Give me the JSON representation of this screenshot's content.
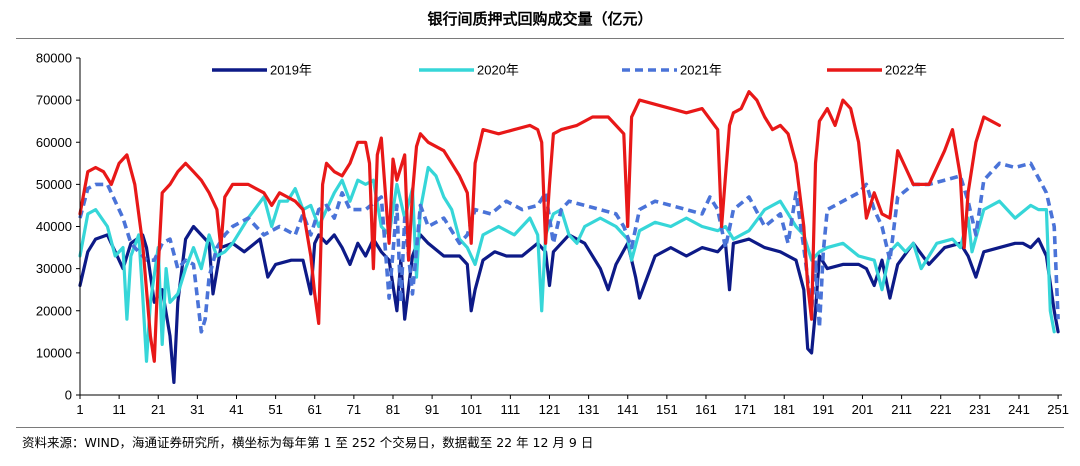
{
  "title": "银行间质押式回购成交量（亿元）",
  "source": "资料来源：WIND，海通证券研究所，横坐标为每年第 1 至 252 个交易日，数据截至 22 年 12 月 9 日",
  "chart_data": {
    "type": "line",
    "title": "银行间质押式回购成交量（亿元）",
    "xlabel": "",
    "ylabel": "",
    "xlim": [
      1,
      252
    ],
    "ylim": [
      0,
      80000
    ],
    "xticks": [
      1,
      11,
      21,
      31,
      41,
      51,
      61,
      71,
      81,
      91,
      101,
      111,
      121,
      131,
      141,
      151,
      161,
      171,
      181,
      191,
      201,
      211,
      221,
      231,
      241,
      251
    ],
    "yticks": [
      0,
      10000,
      20000,
      30000,
      40000,
      50000,
      60000,
      70000,
      80000
    ],
    "legend_position": "top",
    "series": [
      {
        "name": "2019年",
        "color": "#0d1a87",
        "dash": "solid",
        "x": [
          1,
          3,
          5,
          8,
          12,
          14,
          17,
          18,
          20,
          22,
          24,
          25,
          26,
          28,
          30,
          32,
          34,
          35,
          37,
          40,
          43,
          47,
          49,
          51,
          55,
          58,
          60,
          61,
          62,
          64,
          66,
          68,
          70,
          72,
          74,
          76,
          78,
          80,
          82,
          83,
          84,
          86,
          88,
          90,
          94,
          98,
          100,
          101,
          102,
          104,
          107,
          110,
          114,
          118,
          120,
          121,
          122,
          126,
          130,
          134,
          136,
          138,
          141,
          143,
          144,
          148,
          152,
          156,
          160,
          164,
          166,
          167,
          168,
          172,
          176,
          180,
          184,
          186,
          187,
          188,
          189,
          190,
          192,
          196,
          200,
          202,
          204,
          206,
          208,
          210,
          214,
          218,
          222,
          226,
          228,
          230,
          232,
          236,
          240,
          242,
          244,
          246,
          248,
          250,
          251
        ],
        "y": [
          26000,
          34000,
          37000,
          38000,
          30000,
          36000,
          38000,
          35000,
          22000,
          25000,
          14000,
          3000,
          22000,
          37000,
          40000,
          38000,
          36000,
          24000,
          35000,
          36000,
          34000,
          37000,
          28000,
          31000,
          32000,
          32000,
          24000,
          36000,
          38000,
          36000,
          38000,
          35000,
          31000,
          36000,
          33000,
          37000,
          34000,
          32000,
          20000,
          32000,
          18000,
          33000,
          38000,
          36000,
          33000,
          33000,
          31000,
          20000,
          25000,
          32000,
          34000,
          33000,
          33000,
          36000,
          34000,
          26000,
          34000,
          38000,
          36000,
          30000,
          25000,
          31000,
          36000,
          28000,
          23000,
          33000,
          35000,
          33000,
          35000,
          34000,
          36000,
          25000,
          36000,
          37000,
          35000,
          34000,
          32000,
          25000,
          11000,
          10000,
          20000,
          33000,
          30000,
          31000,
          31000,
          30000,
          26000,
          32000,
          23000,
          31000,
          36000,
          31000,
          35000,
          36000,
          33000,
          28000,
          34000,
          35000,
          36000,
          36000,
          35000,
          37000,
          33000,
          20000,
          15000
        ]
      },
      {
        "name": "2020年",
        "color": "#36d6d8",
        "dash": "solid",
        "x": [
          1,
          3,
          5,
          8,
          10,
          12,
          13,
          14,
          16,
          17,
          18,
          19,
          21,
          22,
          23,
          24,
          26,
          28,
          30,
          32,
          34,
          36,
          38,
          40,
          44,
          48,
          50,
          52,
          54,
          56,
          58,
          60,
          62,
          64,
          66,
          68,
          70,
          72,
          74,
          76,
          78,
          80,
          82,
          84,
          86,
          87,
          88,
          90,
          92,
          94,
          96,
          98,
          100,
          102,
          104,
          108,
          112,
          116,
          118,
          119,
          120,
          122,
          124,
          126,
          128,
          130,
          134,
          138,
          141,
          142,
          144,
          148,
          152,
          156,
          160,
          164,
          166,
          168,
          172,
          176,
          180,
          184,
          186,
          188,
          190,
          192,
          196,
          200,
          204,
          206,
          208,
          210,
          212,
          214,
          216,
          220,
          224,
          226,
          228,
          229,
          232,
          236,
          240,
          244,
          246,
          248,
          249,
          250
        ],
        "y": [
          33000,
          43000,
          44000,
          40000,
          33000,
          35000,
          18000,
          33000,
          38000,
          24000,
          8000,
          22000,
          35000,
          12000,
          30000,
          22000,
          24000,
          30000,
          35000,
          30000,
          38000,
          33000,
          34000,
          36000,
          42000,
          47000,
          40000,
          46000,
          46000,
          49000,
          44000,
          45000,
          40000,
          44000,
          48000,
          51000,
          46000,
          51000,
          50000,
          51000,
          40000,
          38000,
          50000,
          42000,
          49000,
          28000,
          44000,
          54000,
          52000,
          47000,
          44000,
          37000,
          35000,
          31000,
          38000,
          40000,
          38000,
          42000,
          38000,
          20000,
          38000,
          43000,
          44000,
          38000,
          36000,
          40000,
          42000,
          40000,
          37000,
          32000,
          39000,
          41000,
          40000,
          42000,
          40000,
          39000,
          40000,
          37000,
          39000,
          44000,
          46000,
          40000,
          38000,
          32000,
          34000,
          35000,
          36000,
          33000,
          32000,
          25000,
          34000,
          36000,
          34000,
          36000,
          30000,
          36000,
          37000,
          35000,
          42000,
          34000,
          44000,
          46000,
          42000,
          45000,
          44000,
          44000,
          20000,
          15000
        ]
      },
      {
        "name": "2021年",
        "color": "#4a73d8",
        "dash": "dashed",
        "x": [
          1,
          3,
          5,
          8,
          10,
          12,
          14,
          16,
          18,
          20,
          22,
          24,
          26,
          28,
          30,
          32,
          33,
          34,
          36,
          38,
          40,
          44,
          48,
          52,
          56,
          58,
          60,
          62,
          64,
          66,
          68,
          70,
          74,
          78,
          80,
          82,
          83,
          84,
          86,
          88,
          90,
          94,
          98,
          100,
          102,
          106,
          110,
          114,
          118,
          120,
          122,
          124,
          126,
          130,
          134,
          138,
          140,
          142,
          144,
          148,
          152,
          156,
          160,
          162,
          164,
          166,
          168,
          172,
          176,
          180,
          182,
          184,
          186,
          188,
          189,
          190,
          191,
          192,
          196,
          200,
          202,
          204,
          206,
          208,
          210,
          214,
          218,
          222,
          226,
          228,
          230,
          232,
          236,
          240,
          244,
          248,
          250,
          251
        ],
        "y": [
          42000,
          49000,
          50000,
          50000,
          46000,
          42000,
          36000,
          34000,
          32000,
          32000,
          36000,
          37000,
          30000,
          32000,
          31000,
          15000,
          18000,
          28000,
          35000,
          38000,
          40000,
          42000,
          38000,
          40000,
          38000,
          43000,
          38000,
          44000,
          45000,
          42000,
          48000,
          44000,
          44000,
          47000,
          23000,
          45000,
          22000,
          42000,
          24000,
          45000,
          40000,
          42000,
          36000,
          38000,
          44000,
          43000,
          46000,
          44000,
          45000,
          48000,
          36000,
          44000,
          46000,
          45000,
          44000,
          43000,
          40000,
          35000,
          44000,
          46000,
          45000,
          44000,
          43000,
          47000,
          44000,
          35000,
          44000,
          47000,
          40000,
          43000,
          36000,
          48000,
          35000,
          20000,
          32000,
          16000,
          34000,
          44000,
          46000,
          48000,
          50000,
          44000,
          40000,
          32000,
          47000,
          50000,
          50000,
          51000,
          52000,
          46000,
          38000,
          51000,
          55000,
          54000,
          55000,
          48000,
          40000,
          18000
        ]
      },
      {
        "name": "2022年",
        "color": "#e81818",
        "dash": "solid",
        "x": [
          1,
          3,
          5,
          7,
          9,
          11,
          13,
          15,
          17,
          18,
          19,
          20,
          21,
          22,
          24,
          26,
          28,
          30,
          32,
          34,
          36,
          37,
          38,
          40,
          44,
          48,
          50,
          52,
          54,
          56,
          58,
          60,
          61,
          62,
          63,
          64,
          66,
          68,
          70,
          72,
          74,
          75,
          76,
          77,
          78,
          80,
          81,
          82,
          84,
          85,
          86,
          87,
          88,
          90,
          94,
          96,
          98,
          100,
          101,
          102,
          104,
          108,
          112,
          116,
          118,
          119,
          120,
          121,
          122,
          124,
          128,
          132,
          136,
          140,
          141,
          142,
          143,
          144,
          148,
          152,
          156,
          160,
          164,
          165,
          166,
          167,
          168,
          170,
          172,
          174,
          176,
          178,
          180,
          182,
          184,
          186,
          187,
          188,
          189,
          190,
          192,
          194,
          196,
          198,
          200,
          202,
          204,
          206,
          208,
          210,
          212,
          214,
          218,
          222,
          224,
          226,
          227,
          228,
          230,
          232,
          234,
          236
        ],
        "y": [
          43000,
          53000,
          54000,
          53000,
          50000,
          55000,
          57000,
          50000,
          36000,
          25000,
          14000,
          8000,
          30000,
          48000,
          50000,
          53000,
          55000,
          53000,
          51000,
          48000,
          44000,
          35000,
          47000,
          50000,
          50000,
          48000,
          45000,
          48000,
          47000,
          46000,
          44000,
          33000,
          24000,
          17000,
          50000,
          55000,
          53000,
          52000,
          55000,
          60000,
          60000,
          55000,
          30000,
          57000,
          61000,
          36000,
          56000,
          51000,
          57000,
          32000,
          48000,
          59000,
          62000,
          60000,
          58000,
          55000,
          52000,
          48000,
          36000,
          55000,
          63000,
          62000,
          63000,
          64000,
          63000,
          60000,
          36000,
          50000,
          62000,
          63000,
          64000,
          66000,
          66000,
          62000,
          40000,
          66000,
          68000,
          70000,
          69000,
          68000,
          67000,
          68000,
          63000,
          40000,
          52000,
          64000,
          67000,
          68000,
          72000,
          70000,
          66000,
          63000,
          64000,
          62000,
          55000,
          40000,
          26000,
          18000,
          55000,
          65000,
          68000,
          64000,
          70000,
          68000,
          60000,
          42000,
          48000,
          43000,
          42000,
          58000,
          54000,
          50000,
          50000,
          58000,
          63000,
          52000,
          35000,
          48000,
          60000,
          66000,
          65000,
          64000
        ]
      }
    ]
  }
}
